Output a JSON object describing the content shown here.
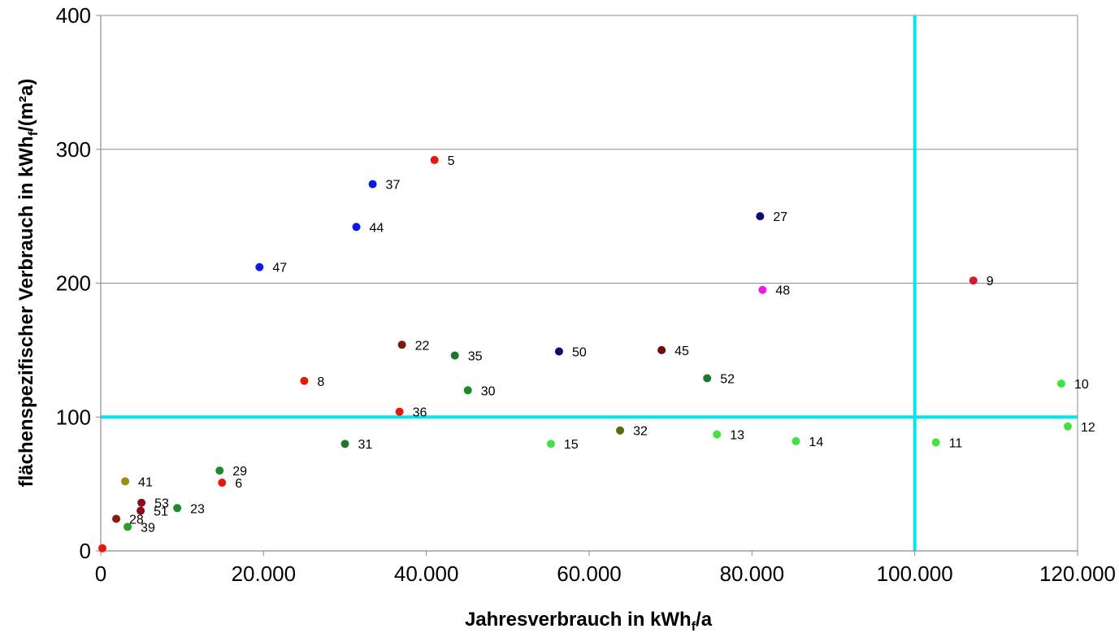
{
  "chart_data": {
    "type": "scatter",
    "xlabel": "Jahresverbrauch in kWh",
    "xlabel_sub": "f",
    "xlabel_suffix": "/a",
    "ylabel": "flächenspezifischer Verbrauch in kWh",
    "ylabel_sub": "f",
    "ylabel_suffix": "/(m²a)",
    "xlim": [
      0,
      120000
    ],
    "ylim": [
      0,
      400
    ],
    "x_ticks": [
      0,
      20000,
      40000,
      60000,
      80000,
      100000,
      120000
    ],
    "x_tick_labels": [
      "0",
      "20.000",
      "40.000",
      "60.000",
      "80.000",
      "100.000",
      "120.000"
    ],
    "y_ticks": [
      0,
      100,
      200,
      300,
      400
    ],
    "y_tick_labels": [
      "0",
      "100",
      "200",
      "300",
      "400"
    ],
    "grid": "horizontal",
    "reference_lines": {
      "x": 100000,
      "y": 100,
      "color": "#00e5f0"
    },
    "points": [
      {
        "label": "5",
        "x": 41000,
        "y": 292,
        "color": "#e8170a"
      },
      {
        "label": "37",
        "x": 33400,
        "y": 274,
        "color": "#0a18e8"
      },
      {
        "label": "44",
        "x": 31400,
        "y": 242,
        "color": "#0a18e8"
      },
      {
        "label": "47",
        "x": 19500,
        "y": 212,
        "color": "#0a18e8"
      },
      {
        "label": "27",
        "x": 81000,
        "y": 250,
        "color": "#0a0a6e"
      },
      {
        "label": "48",
        "x": 81300,
        "y": 195,
        "color": "#f01ae0"
      },
      {
        "label": "9",
        "x": 107200,
        "y": 202,
        "color": "#d61a2c"
      },
      {
        "label": "22",
        "x": 37000,
        "y": 154,
        "color": "#7a1a0a"
      },
      {
        "label": "35",
        "x": 43500,
        "y": 146,
        "color": "#1a7a2a"
      },
      {
        "label": "50",
        "x": 56300,
        "y": 149,
        "color": "#0a0a6e"
      },
      {
        "label": "45",
        "x": 68900,
        "y": 150,
        "color": "#6e0a0a"
      },
      {
        "label": "8",
        "x": 25000,
        "y": 127,
        "color": "#e8170a"
      },
      {
        "label": "30",
        "x": 45100,
        "y": 120,
        "color": "#1a8a2a"
      },
      {
        "label": "52",
        "x": 74500,
        "y": 129,
        "color": "#1a7a2a"
      },
      {
        "label": "10",
        "x": 118000,
        "y": 125,
        "color": "#44e044"
      },
      {
        "label": "36",
        "x": 36700,
        "y": 104,
        "color": "#e8170a"
      },
      {
        "label": "31",
        "x": 30000,
        "y": 80,
        "color": "#1a7a2a"
      },
      {
        "label": "15",
        "x": 55300,
        "y": 80,
        "color": "#44e044"
      },
      {
        "label": "32",
        "x": 63800,
        "y": 90,
        "color": "#5a6a0a"
      },
      {
        "label": "13",
        "x": 75700,
        "y": 87,
        "color": "#44e044"
      },
      {
        "label": "14",
        "x": 85400,
        "y": 82,
        "color": "#44e044"
      },
      {
        "label": "11",
        "x": 102600,
        "y": 81,
        "color": "#44e044"
      },
      {
        "label": "12",
        "x": 118800,
        "y": 93,
        "color": "#44e044"
      },
      {
        "label": "29",
        "x": 14600,
        "y": 60,
        "color": "#1a8a2a"
      },
      {
        "label": "6",
        "x": 14900,
        "y": 51,
        "color": "#e8170a"
      },
      {
        "label": "41",
        "x": 3000,
        "y": 52,
        "color": "#a08a1a"
      },
      {
        "label": "53",
        "x": 5000,
        "y": 36,
        "color": "#8a0a1a"
      },
      {
        "label": "51",
        "x": 4900,
        "y": 30,
        "color": "#8a0a1a"
      },
      {
        "label": "23",
        "x": 9400,
        "y": 32,
        "color": "#1a8a2a"
      },
      {
        "label": "28",
        "x": 1900,
        "y": 24,
        "color": "#8a1a0a"
      },
      {
        "label": "39",
        "x": 3300,
        "y": 18,
        "color": "#2aa02a"
      },
      {
        "label": "",
        "x": 200,
        "y": 2,
        "color": "#e8170a"
      }
    ]
  }
}
